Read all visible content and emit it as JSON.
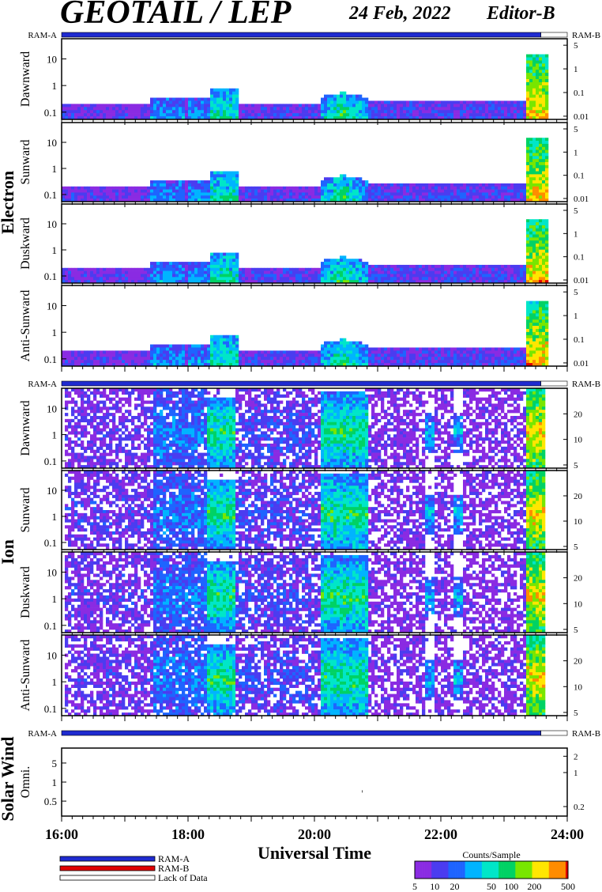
{
  "header": {
    "title": "GEOTAIL / LEP",
    "date": "24 Feb, 2022",
    "editor": "Editor-B"
  },
  "ram_labels": {
    "left": "RAM-A",
    "right": "RAM-B"
  },
  "groups": {
    "electron": "Electron",
    "ion": "Ion",
    "solar_wind": "Solar Wind"
  },
  "colors": {
    "ram_a": "#1f2bd0",
    "ram_b": "#e00000",
    "lack_of_data": "#ffffff",
    "colormap": [
      "#8a2be2",
      "#4b3cf0",
      "#1e64ff",
      "#00b4ff",
      "#00e6c8",
      "#00d264",
      "#78e600",
      "#ffe600",
      "#ff8c00",
      "#e00000"
    ]
  },
  "chart_data": {
    "type": "heatmap",
    "xlabel": "Universal Time",
    "x_range": [
      "16:00",
      "24:00"
    ],
    "x_ticks": [
      "16:00",
      "18:00",
      "20:00",
      "22:00",
      "24:00"
    ],
    "ram_bar": [
      {
        "start": "16:00",
        "end": "23:35",
        "state": "RAM-A"
      },
      {
        "start": "23:35",
        "end": "24:00",
        "state": "Lack of Data"
      }
    ],
    "panels": [
      {
        "group": "Electron",
        "label": "Dawnward",
        "left_ticks": [
          "10",
          "1",
          "0.1"
        ],
        "right_ticks": [
          "5",
          "1",
          "0.1",
          "0.01"
        ]
      },
      {
        "group": "Electron",
        "label": "Sunward",
        "left_ticks": [
          "10",
          "1",
          "0.1"
        ],
        "right_ticks": [
          "5",
          "1",
          "0.1",
          "0.01"
        ]
      },
      {
        "group": "Electron",
        "label": "Duskward",
        "left_ticks": [
          "10",
          "1",
          "0.1"
        ],
        "right_ticks": [
          "5",
          "1",
          "0.1",
          "0.01"
        ]
      },
      {
        "group": "Electron",
        "label": "Anti-Sunward",
        "left_ticks": [
          "10",
          "1",
          "0.1"
        ],
        "right_ticks": [
          "5",
          "1",
          "0.1",
          "0.01"
        ]
      },
      {
        "group": "Ion",
        "label": "Dawnward",
        "left_ticks": [
          "10",
          "1",
          "0.1"
        ],
        "right_ticks": [
          "20",
          "10",
          "5"
        ]
      },
      {
        "group": "Ion",
        "label": "Sunward",
        "left_ticks": [
          "10",
          "1",
          "0.1"
        ],
        "right_ticks": [
          "20",
          "10",
          "5"
        ]
      },
      {
        "group": "Ion",
        "label": "Duskward",
        "left_ticks": [
          "10",
          "1",
          "0.1"
        ],
        "right_ticks": [
          "20",
          "10",
          "5"
        ]
      },
      {
        "group": "Ion",
        "label": "Anti-Sunward",
        "left_ticks": [
          "10",
          "1",
          "0.1"
        ],
        "right_ticks": [
          "20",
          "10",
          "5"
        ]
      },
      {
        "group": "Solar Wind",
        "label": "Omni.",
        "left_ticks": [
          "5",
          "1",
          "0.5"
        ],
        "right_ticks": [
          "2",
          "1",
          "0.2"
        ]
      }
    ],
    "colorbar": {
      "title": "Counts/Sample",
      "ticks": [
        "5",
        "10",
        "20",
        "50",
        "100",
        "200",
        "500"
      ]
    },
    "legend": [
      {
        "label": "RAM-A",
        "color": "#1f2bd0"
      },
      {
        "label": "RAM-B",
        "color": "#e00000"
      },
      {
        "label": "Lack of Data",
        "color": "#ffffff"
      }
    ]
  }
}
